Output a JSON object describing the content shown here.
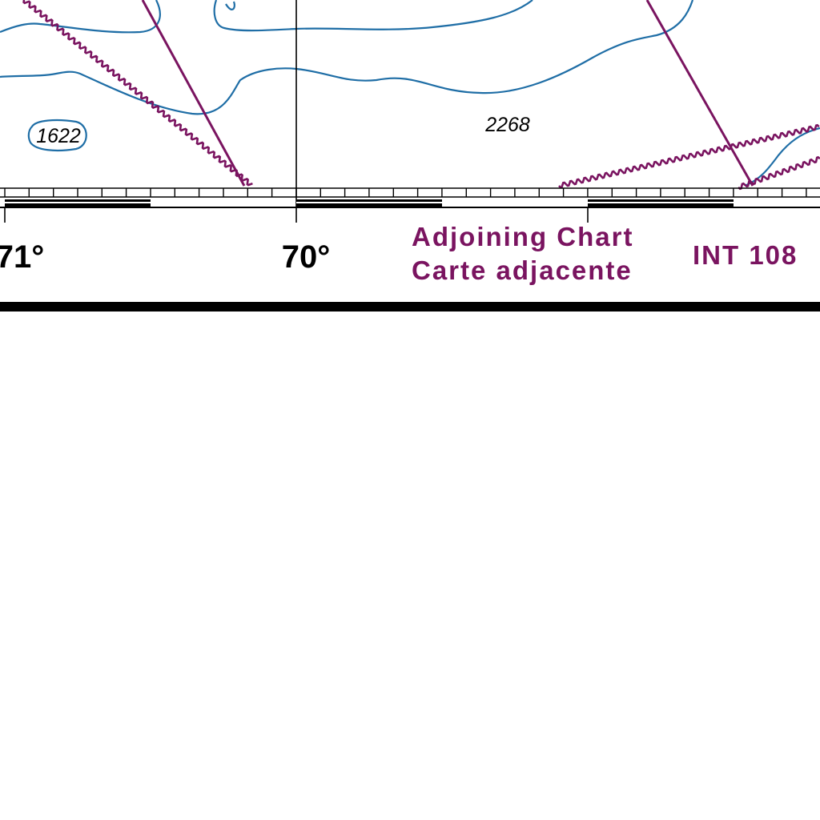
{
  "map": {
    "longitude_labels": [
      "71°",
      "70°"
    ],
    "depth_soundings": [
      "1622",
      "2268"
    ],
    "adjoining_chart": {
      "line1": "Adjoining Chart",
      "line2": "Carte adjacente",
      "chart_number": "INT 108"
    },
    "colors": {
      "depth_contour": "#1f6ea6",
      "boundary": "#7a1460",
      "text": "#000000",
      "border": "#000000",
      "background": "#ffffff"
    }
  }
}
